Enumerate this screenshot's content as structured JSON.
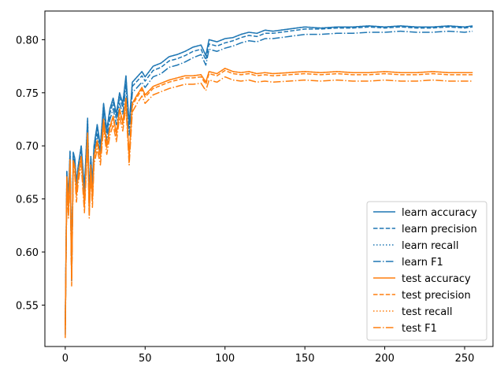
{
  "chart_data": {
    "type": "line",
    "title": "",
    "xlabel": "",
    "ylabel": "",
    "xlim": [
      -12.75,
      267.75
    ],
    "ylim": [
      0.511,
      0.827
    ],
    "xticks": [
      0,
      50,
      100,
      150,
      200,
      250
    ],
    "xtick_labels": [
      "0",
      "50",
      "100",
      "150",
      "200",
      "250"
    ],
    "yticks": [
      0.55,
      0.6,
      0.65,
      0.7,
      0.75,
      0.8
    ],
    "ytick_labels": [
      "0.55",
      "0.60",
      "0.65",
      "0.70",
      "0.75",
      "0.80"
    ],
    "grid": false,
    "legend_position": "lower-right",
    "series": [
      {
        "name": "learn accuracy",
        "color": "#1f77b4",
        "dash": "solid",
        "x": [
          0,
          1,
          2,
          3,
          4,
          5,
          6,
          7,
          8,
          9,
          10,
          12,
          14,
          15,
          16,
          17,
          18,
          20,
          22,
          24,
          26,
          28,
          30,
          32,
          34,
          36,
          38,
          40,
          42,
          45,
          48,
          50,
          55,
          60,
          65,
          70,
          75,
          80,
          85,
          88,
          90,
          95,
          100,
          105,
          110,
          115,
          120,
          125,
          130,
          140,
          150,
          160,
          170,
          180,
          190,
          200,
          210,
          220,
          230,
          240,
          250,
          255
        ],
        "y": [
          0.531,
          0.676,
          0.652,
          0.695,
          0.58,
          0.694,
          0.688,
          0.665,
          0.68,
          0.69,
          0.7,
          0.66,
          0.726,
          0.65,
          0.69,
          0.665,
          0.7,
          0.72,
          0.7,
          0.74,
          0.715,
          0.735,
          0.745,
          0.73,
          0.75,
          0.74,
          0.766,
          0.72,
          0.76,
          0.765,
          0.77,
          0.765,
          0.775,
          0.778,
          0.784,
          0.786,
          0.789,
          0.793,
          0.795,
          0.785,
          0.8,
          0.798,
          0.801,
          0.802,
          0.805,
          0.807,
          0.806,
          0.809,
          0.808,
          0.81,
          0.812,
          0.811,
          0.812,
          0.812,
          0.813,
          0.812,
          0.813,
          0.812,
          0.812,
          0.813,
          0.812,
          0.813
        ]
      },
      {
        "name": "learn precision",
        "color": "#1f77b4",
        "dash": "dashed",
        "x": [
          0,
          1,
          2,
          3,
          4,
          5,
          6,
          7,
          8,
          9,
          10,
          12,
          14,
          15,
          16,
          17,
          18,
          20,
          22,
          24,
          26,
          28,
          30,
          32,
          34,
          36,
          38,
          40,
          42,
          45,
          48,
          50,
          55,
          60,
          65,
          70,
          75,
          80,
          85,
          88,
          90,
          95,
          100,
          105,
          110,
          115,
          120,
          125,
          130,
          140,
          150,
          160,
          170,
          180,
          190,
          200,
          210,
          220,
          230,
          240,
          250,
          255
        ],
        "y": [
          0.529,
          0.672,
          0.648,
          0.69,
          0.576,
          0.69,
          0.684,
          0.661,
          0.676,
          0.686,
          0.696,
          0.656,
          0.722,
          0.646,
          0.686,
          0.661,
          0.696,
          0.716,
          0.696,
          0.736,
          0.711,
          0.731,
          0.741,
          0.726,
          0.746,
          0.736,
          0.762,
          0.716,
          0.756,
          0.761,
          0.766,
          0.761,
          0.771,
          0.774,
          0.78,
          0.782,
          0.785,
          0.789,
          0.791,
          0.781,
          0.796,
          0.794,
          0.797,
          0.799,
          0.802,
          0.804,
          0.803,
          0.806,
          0.806,
          0.808,
          0.81,
          0.81,
          0.811,
          0.811,
          0.812,
          0.811,
          0.812,
          0.811,
          0.811,
          0.812,
          0.811,
          0.812
        ]
      },
      {
        "name": "learn recall",
        "color": "#1f77b4",
        "dash": "dotted",
        "x": [
          0,
          1,
          2,
          3,
          4,
          5,
          6,
          7,
          8,
          9,
          10,
          12,
          14,
          15,
          16,
          17,
          18,
          20,
          22,
          24,
          26,
          28,
          30,
          32,
          34,
          36,
          38,
          40,
          42,
          45,
          48,
          50,
          55,
          60,
          65,
          70,
          75,
          80,
          85,
          88,
          90,
          95,
          100,
          105,
          110,
          115,
          120,
          125,
          130,
          140,
          150,
          160,
          170,
          180,
          190,
          200,
          210,
          220,
          230,
          240,
          250,
          255
        ],
        "y": [
          0.531,
          0.676,
          0.652,
          0.695,
          0.58,
          0.694,
          0.688,
          0.665,
          0.68,
          0.69,
          0.7,
          0.66,
          0.726,
          0.65,
          0.69,
          0.665,
          0.7,
          0.72,
          0.7,
          0.74,
          0.715,
          0.735,
          0.745,
          0.73,
          0.75,
          0.74,
          0.766,
          0.72,
          0.76,
          0.765,
          0.77,
          0.765,
          0.775,
          0.778,
          0.784,
          0.786,
          0.789,
          0.793,
          0.795,
          0.785,
          0.8,
          0.798,
          0.801,
          0.802,
          0.805,
          0.807,
          0.806,
          0.809,
          0.808,
          0.81,
          0.812,
          0.811,
          0.812,
          0.812,
          0.813,
          0.812,
          0.813,
          0.812,
          0.812,
          0.813,
          0.812,
          0.813
        ]
      },
      {
        "name": "learn F1",
        "color": "#1f77b4",
        "dash": "dashdot",
        "x": [
          0,
          1,
          2,
          3,
          4,
          5,
          6,
          7,
          8,
          9,
          10,
          12,
          14,
          15,
          16,
          17,
          18,
          20,
          22,
          24,
          26,
          28,
          30,
          32,
          34,
          36,
          38,
          40,
          42,
          45,
          48,
          50,
          55,
          60,
          65,
          70,
          75,
          80,
          85,
          88,
          90,
          95,
          100,
          105,
          110,
          115,
          120,
          125,
          130,
          140,
          150,
          160,
          170,
          180,
          190,
          200,
          210,
          220,
          230,
          240,
          250,
          255
        ],
        "y": [
          0.522,
          0.668,
          0.644,
          0.686,
          0.572,
          0.685,
          0.679,
          0.656,
          0.671,
          0.681,
          0.691,
          0.651,
          0.716,
          0.641,
          0.681,
          0.656,
          0.691,
          0.711,
          0.69,
          0.73,
          0.705,
          0.725,
          0.735,
          0.72,
          0.74,
          0.73,
          0.756,
          0.71,
          0.75,
          0.755,
          0.76,
          0.755,
          0.765,
          0.768,
          0.774,
          0.776,
          0.779,
          0.783,
          0.786,
          0.776,
          0.791,
          0.789,
          0.792,
          0.794,
          0.797,
          0.799,
          0.798,
          0.801,
          0.801,
          0.803,
          0.805,
          0.805,
          0.806,
          0.806,
          0.807,
          0.807,
          0.808,
          0.807,
          0.807,
          0.808,
          0.807,
          0.808
        ]
      },
      {
        "name": "test accuracy",
        "color": "#ff7f0e",
        "dash": "solid",
        "x": [
          0,
          1,
          2,
          3,
          4,
          5,
          6,
          7,
          8,
          9,
          10,
          12,
          14,
          15,
          16,
          17,
          18,
          20,
          22,
          24,
          26,
          28,
          30,
          32,
          34,
          36,
          38,
          40,
          42,
          45,
          48,
          50,
          55,
          60,
          65,
          70,
          75,
          80,
          85,
          88,
          90,
          95,
          100,
          105,
          110,
          115,
          120,
          125,
          130,
          140,
          150,
          160,
          170,
          180,
          190,
          200,
          210,
          220,
          230,
          240,
          250,
          255
        ],
        "y": [
          0.527,
          0.671,
          0.64,
          0.687,
          0.575,
          0.686,
          0.68,
          0.655,
          0.672,
          0.682,
          0.69,
          0.645,
          0.712,
          0.64,
          0.682,
          0.65,
          0.69,
          0.705,
          0.69,
          0.725,
          0.7,
          0.718,
          0.728,
          0.712,
          0.735,
          0.722,
          0.745,
          0.69,
          0.74,
          0.748,
          0.755,
          0.748,
          0.756,
          0.759,
          0.762,
          0.764,
          0.766,
          0.766,
          0.767,
          0.76,
          0.77,
          0.768,
          0.773,
          0.77,
          0.769,
          0.77,
          0.768,
          0.769,
          0.768,
          0.769,
          0.77,
          0.769,
          0.77,
          0.769,
          0.769,
          0.77,
          0.769,
          0.769,
          0.77,
          0.769,
          0.769,
          0.769
        ]
      },
      {
        "name": "test precision",
        "color": "#ff7f0e",
        "dash": "dashed",
        "x": [
          0,
          1,
          2,
          3,
          4,
          5,
          6,
          7,
          8,
          9,
          10,
          12,
          14,
          15,
          16,
          17,
          18,
          20,
          22,
          24,
          26,
          28,
          30,
          32,
          34,
          36,
          38,
          40,
          42,
          45,
          48,
          50,
          55,
          60,
          65,
          70,
          75,
          80,
          85,
          88,
          90,
          95,
          100,
          105,
          110,
          115,
          120,
          125,
          130,
          140,
          150,
          160,
          170,
          180,
          190,
          200,
          210,
          220,
          230,
          240,
          250,
          255
        ],
        "y": [
          0.526,
          0.669,
          0.638,
          0.685,
          0.573,
          0.684,
          0.678,
          0.653,
          0.67,
          0.68,
          0.688,
          0.643,
          0.71,
          0.638,
          0.68,
          0.648,
          0.688,
          0.703,
          0.688,
          0.723,
          0.698,
          0.716,
          0.726,
          0.71,
          0.733,
          0.72,
          0.743,
          0.688,
          0.738,
          0.746,
          0.753,
          0.746,
          0.754,
          0.757,
          0.76,
          0.762,
          0.764,
          0.764,
          0.765,
          0.758,
          0.768,
          0.766,
          0.771,
          0.768,
          0.767,
          0.768,
          0.766,
          0.767,
          0.766,
          0.767,
          0.768,
          0.767,
          0.768,
          0.767,
          0.767,
          0.768,
          0.767,
          0.767,
          0.768,
          0.767,
          0.767,
          0.767
        ]
      },
      {
        "name": "test recall",
        "color": "#ff7f0e",
        "dash": "dotted",
        "x": [
          0,
          1,
          2,
          3,
          4,
          5,
          6,
          7,
          8,
          9,
          10,
          12,
          14,
          15,
          16,
          17,
          18,
          20,
          22,
          24,
          26,
          28,
          30,
          32,
          34,
          36,
          38,
          40,
          42,
          45,
          48,
          50,
          55,
          60,
          65,
          70,
          75,
          80,
          85,
          88,
          90,
          95,
          100,
          105,
          110,
          115,
          120,
          125,
          130,
          140,
          150,
          160,
          170,
          180,
          190,
          200,
          210,
          220,
          230,
          240,
          250,
          255
        ],
        "y": [
          0.527,
          0.671,
          0.64,
          0.687,
          0.575,
          0.686,
          0.68,
          0.655,
          0.672,
          0.682,
          0.69,
          0.645,
          0.712,
          0.64,
          0.682,
          0.65,
          0.69,
          0.705,
          0.69,
          0.725,
          0.7,
          0.718,
          0.728,
          0.712,
          0.735,
          0.722,
          0.745,
          0.69,
          0.74,
          0.748,
          0.755,
          0.748,
          0.756,
          0.759,
          0.762,
          0.764,
          0.766,
          0.766,
          0.767,
          0.76,
          0.77,
          0.768,
          0.773,
          0.77,
          0.769,
          0.77,
          0.768,
          0.769,
          0.768,
          0.769,
          0.77,
          0.769,
          0.77,
          0.769,
          0.769,
          0.77,
          0.769,
          0.769,
          0.77,
          0.769,
          0.769,
          0.769
        ]
      },
      {
        "name": "test F1",
        "color": "#ff7f0e",
        "dash": "dashdot",
        "x": [
          0,
          1,
          2,
          3,
          4,
          5,
          6,
          7,
          8,
          9,
          10,
          12,
          14,
          15,
          16,
          17,
          18,
          20,
          22,
          24,
          26,
          28,
          30,
          32,
          34,
          36,
          38,
          40,
          42,
          45,
          48,
          50,
          55,
          60,
          65,
          70,
          75,
          80,
          85,
          88,
          90,
          95,
          100,
          105,
          110,
          115,
          120,
          125,
          130,
          140,
          150,
          160,
          170,
          180,
          190,
          200,
          210,
          220,
          230,
          240,
          250,
          255
        ],
        "y": [
          0.519,
          0.663,
          0.632,
          0.679,
          0.568,
          0.678,
          0.672,
          0.647,
          0.664,
          0.674,
          0.682,
          0.637,
          0.704,
          0.632,
          0.674,
          0.642,
          0.682,
          0.697,
          0.682,
          0.717,
          0.692,
          0.71,
          0.72,
          0.704,
          0.727,
          0.714,
          0.737,
          0.682,
          0.732,
          0.74,
          0.747,
          0.74,
          0.748,
          0.751,
          0.754,
          0.756,
          0.758,
          0.758,
          0.759,
          0.752,
          0.762,
          0.76,
          0.765,
          0.762,
          0.761,
          0.762,
          0.76,
          0.761,
          0.76,
          0.761,
          0.762,
          0.761,
          0.762,
          0.761,
          0.761,
          0.762,
          0.761,
          0.761,
          0.762,
          0.761,
          0.761,
          0.761
        ]
      }
    ]
  }
}
